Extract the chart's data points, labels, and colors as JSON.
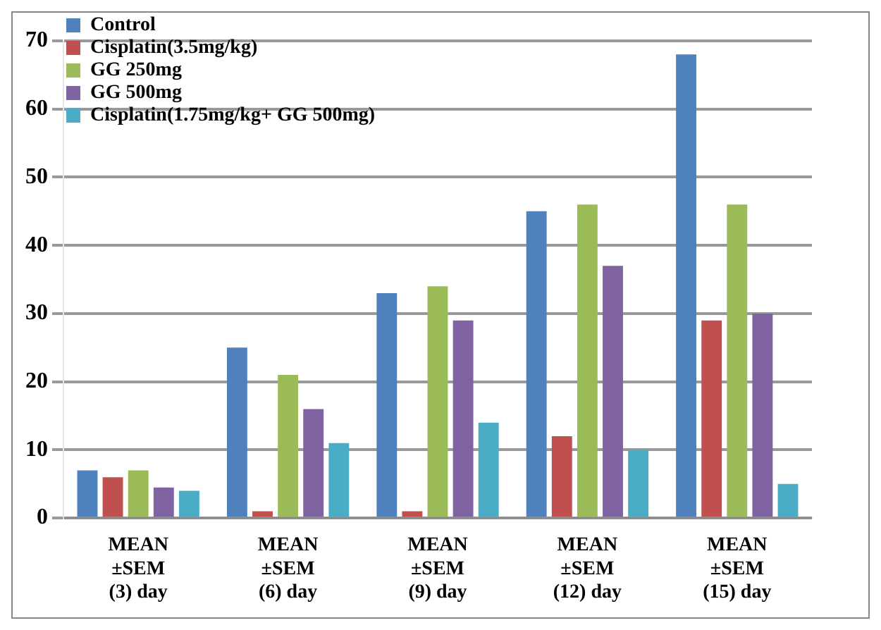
{
  "chart_data": {
    "type": "bar",
    "categories": [
      "MEAN\n±SEM\n(3) day",
      "MEAN\n±SEM\n(6) day",
      "MEAN\n±SEM\n(9) day",
      "MEAN\n±SEM\n(12) day",
      "MEAN\n±SEM\n(15) day"
    ],
    "series": [
      {
        "name": "Control",
        "color": "#4f81bd",
        "values": [
          7,
          25,
          33,
          45,
          68
        ]
      },
      {
        "name": "Cisplatin(3.5mg/kg)",
        "color": "#c0504d",
        "values": [
          6,
          1,
          1,
          12,
          29
        ]
      },
      {
        "name": "GG 250mg",
        "color": "#9bbb59",
        "values": [
          7,
          21,
          34,
          46,
          46
        ]
      },
      {
        "name": "GG 500mg",
        "color": "#8064a2",
        "values": [
          4.5,
          16,
          29,
          37,
          30
        ]
      },
      {
        "name": "Cisplatin(1.75mg/kg+ GG 500mg)",
        "color": "#4bacc6",
        "values": [
          4,
          11,
          14,
          10,
          5
        ]
      }
    ],
    "ylim": [
      0,
      70
    ],
    "yticks": [
      0,
      10,
      20,
      30,
      40,
      50,
      60,
      70
    ],
    "grid": "y",
    "legend": "top left"
  }
}
